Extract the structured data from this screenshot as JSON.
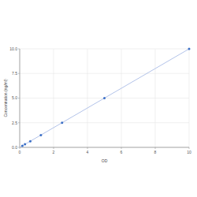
{
  "chart_data": {
    "type": "scatter",
    "x_label": "OD",
    "y_label": "Concentration (ng/ml)",
    "series": [
      {
        "type": "scatter",
        "color": "#3b6fc6",
        "marker": "circle",
        "x": [
          0.156,
          0.312,
          0.625,
          1.25,
          2.5,
          5,
          10
        ],
        "values": [
          0.156,
          0.312,
          0.625,
          1.25,
          2.5,
          5,
          10
        ]
      },
      {
        "type": "line",
        "color": "#9fb4e3",
        "line_style": "solid",
        "x": [
          0,
          10
        ],
        "values": [
          0,
          10
        ]
      }
    ],
    "xlim": [
      0,
      10
    ],
    "xticks": [
      0,
      2,
      4,
      6,
      8,
      10
    ],
    "ylim": [
      0,
      10
    ],
    "yticks": [
      {
        "value": 0,
        "label": "0.0"
      },
      {
        "value": 2.5,
        "label": "2.5"
      },
      {
        "value": 5,
        "label": "5.0"
      },
      {
        "value": 7.5,
        "label": "7.5"
      },
      {
        "value": 10,
        "label": "10.0"
      }
    ],
    "grid": true
  }
}
